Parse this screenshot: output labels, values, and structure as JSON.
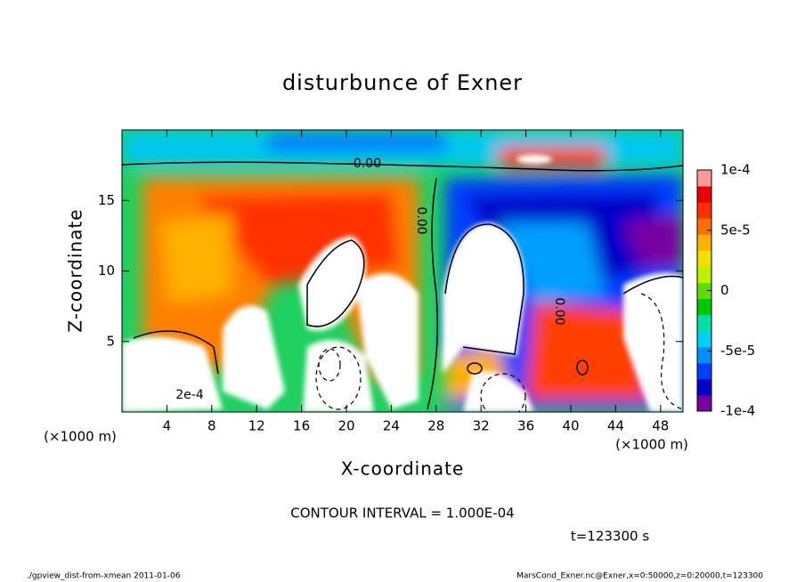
{
  "chart_data": {
    "type": "contour",
    "title": "disturbunce of Exner",
    "x_label": "X-coordinate",
    "y_label": "Z-coordinate",
    "x_unit": "(×1000 m)",
    "y_unit": "(×1000 m)",
    "xlim": [
      0,
      50
    ],
    "xticks": [
      4,
      8,
      12,
      16,
      20,
      24,
      28,
      32,
      36,
      40,
      44,
      48
    ],
    "ylim": [
      0,
      20
    ],
    "yticks": [
      5,
      10,
      15
    ],
    "colorbar_lim": [
      -0.0001,
      0.0001
    ],
    "colorbar_ticks": [
      {
        "value": 0.0001,
        "label": "1e-4"
      },
      {
        "value": 5e-05,
        "label": "5e-5"
      },
      0,
      {
        "value": -5e-05,
        "label": "-5e-5"
      },
      {
        "value": -0.0001,
        "label": "-1e-4"
      }
    ],
    "colors": [
      "#7800a0",
      "#0000c8",
      "#0040ff",
      "#0090ff",
      "#00d0f0",
      "#00e0a0",
      "#00c800",
      "#60dc00",
      "#c0f000",
      "#f0e000",
      "#ffb000",
      "#ff7000",
      "#ff3000",
      "#e80000",
      "#ff9898"
    ],
    "contour_labels": [
      "-0.00",
      "0.00",
      "0.00",
      "2e-4"
    ],
    "contour_interval": "CONTOUR INTERVAL = 1.000E-04",
    "time": "t=123300 s",
    "footer_left": "./gpview_dist-from-xmean  2011-01-06",
    "footer_right": "MarsCond_Exner.nc@Exner,x=0:50000,z=0:20000,t=123300"
  }
}
